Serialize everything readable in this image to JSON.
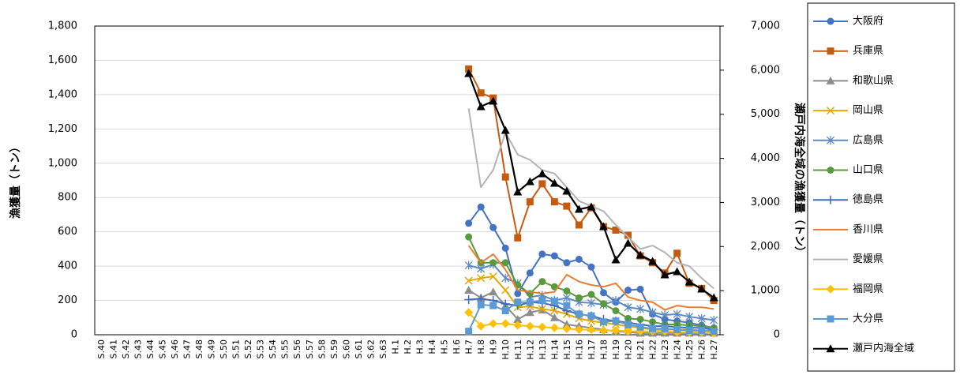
{
  "chart_data": {
    "type": "line",
    "y_title": "漁獲量（トン）",
    "y2_title": "瀬戸内海全域の漁獲量（トン）",
    "categories": [
      "S.40",
      "S.41",
      "S.42",
      "S.43",
      "S.44",
      "S.45",
      "S.46",
      "S.47",
      "S.48",
      "S.49",
      "S.50",
      "S.51",
      "S.52",
      "S.53",
      "S.54",
      "S.55",
      "S.56",
      "S.57",
      "S.58",
      "S.59",
      "S.60",
      "S.61",
      "S.62",
      "S.63",
      "H.1",
      "H.2",
      "H.3",
      "H.4",
      "H.5",
      "H.6",
      "H.7",
      "H.8",
      "H.9",
      "H.10",
      "H.11",
      "H.12",
      "H.13",
      "H.14",
      "H.15",
      "H.16",
      "H.17",
      "H.18",
      "H.19",
      "H.20",
      "H.21",
      "H.22",
      "H.23",
      "H.24",
      "H.25",
      "H.26",
      "H.27"
    ],
    "ylim": [
      0,
      1800
    ],
    "yticks": [
      0,
      200,
      400,
      600,
      800,
      {
        "value": 1000,
        "label": "1,000"
      },
      {
        "value": 1200,
        "label": "1,200"
      },
      {
        "value": 1400,
        "label": "1,400"
      },
      {
        "value": 1600,
        "label": "1,600"
      },
      {
        "value": 1800,
        "label": "1,800"
      }
    ],
    "y2lim": [
      0,
      7000
    ],
    "y2ticks": [
      0,
      {
        "value": 1000,
        "label": "1,000"
      },
      {
        "value": 2000,
        "label": "2,000"
      },
      {
        "value": 3000,
        "label": "3,000"
      },
      {
        "value": 4000,
        "label": "4,000"
      },
      {
        "value": 5000,
        "label": "5,000"
      },
      {
        "value": 6000,
        "label": "6,000"
      },
      {
        "value": 7000,
        "label": "7,000"
      }
    ],
    "grid": true,
    "legend": "right",
    "series": [
      {
        "name": "大阪府",
        "color": "#4472c4",
        "marker": "circle",
        "values": [
          null,
          null,
          null,
          null,
          null,
          null,
          null,
          null,
          null,
          null,
          null,
          null,
          null,
          null,
          null,
          null,
          null,
          null,
          null,
          null,
          null,
          null,
          null,
          null,
          null,
          null,
          null,
          null,
          null,
          null,
          650,
          745,
          625,
          505,
          240,
          360,
          470,
          460,
          420,
          440,
          395,
          245,
          190,
          260,
          265,
          120,
          90,
          80,
          70,
          55,
          40
        ]
      },
      {
        "name": "兵庫県",
        "color": "#c55a11",
        "marker": "square",
        "values": [
          null,
          null,
          null,
          null,
          null,
          null,
          null,
          null,
          null,
          null,
          null,
          null,
          null,
          null,
          null,
          null,
          null,
          null,
          null,
          null,
          null,
          null,
          null,
          null,
          null,
          null,
          null,
          null,
          null,
          null,
          1550,
          1410,
          1380,
          920,
          565,
          775,
          880,
          775,
          750,
          640,
          740,
          630,
          610,
          580,
          460,
          420,
          360,
          475,
          300,
          270,
          200
        ]
      },
      {
        "name": "和歌山県",
        "color": "#8c8c8c",
        "marker": "triangle",
        "values": [
          null,
          null,
          null,
          null,
          null,
          null,
          null,
          null,
          null,
          null,
          null,
          null,
          null,
          null,
          null,
          null,
          null,
          null,
          null,
          null,
          null,
          null,
          null,
          null,
          null,
          null,
          null,
          null,
          null,
          null,
          260,
          215,
          250,
          170,
          90,
          130,
          145,
          100,
          60,
          50,
          40,
          30,
          20,
          15,
          10,
          10,
          10,
          10,
          10,
          10,
          10
        ]
      },
      {
        "name": "岡山県",
        "color": "#e6a800",
        "marker": "x",
        "values": [
          null,
          null,
          null,
          null,
          null,
          null,
          null,
          null,
          null,
          null,
          null,
          null,
          null,
          null,
          null,
          null,
          null,
          null,
          null,
          null,
          null,
          null,
          null,
          null,
          null,
          null,
          null,
          null,
          null,
          null,
          315,
          330,
          340,
          260,
          160,
          165,
          150,
          140,
          120,
          95,
          80,
          70,
          60,
          50,
          40,
          30,
          30,
          30,
          30,
          25,
          25
        ]
      },
      {
        "name": "広島県",
        "color": "#5b8ac6",
        "marker": "asterisk",
        "values": [
          null,
          null,
          null,
          null,
          null,
          null,
          null,
          null,
          null,
          null,
          null,
          null,
          null,
          null,
          null,
          null,
          null,
          null,
          null,
          null,
          null,
          null,
          null,
          null,
          null,
          null,
          null,
          null,
          null,
          null,
          405,
          385,
          410,
          330,
          300,
          220,
          230,
          200,
          215,
          190,
          185,
          175,
          200,
          160,
          150,
          130,
          115,
          120,
          105,
          95,
          85
        ]
      },
      {
        "name": "山口県",
        "color": "#5a9a3c",
        "marker": "circle",
        "values": [
          null,
          null,
          null,
          null,
          null,
          null,
          null,
          null,
          null,
          null,
          null,
          null,
          null,
          null,
          null,
          null,
          null,
          null,
          null,
          null,
          null,
          null,
          null,
          null,
          null,
          null,
          null,
          null,
          null,
          null,
          570,
          420,
          420,
          420,
          290,
          240,
          310,
          280,
          255,
          215,
          235,
          180,
          140,
          95,
          90,
          75,
          60,
          60,
          55,
          50,
          40
        ]
      },
      {
        "name": "徳島県",
        "color": "#3c6bc0",
        "marker": "plus",
        "values": [
          null,
          null,
          null,
          null,
          null,
          null,
          null,
          null,
          null,
          null,
          null,
          null,
          null,
          null,
          null,
          null,
          null,
          null,
          null,
          null,
          null,
          null,
          null,
          null,
          null,
          null,
          null,
          null,
          null,
          null,
          205,
          210,
          200,
          180,
          170,
          190,
          185,
          170,
          140,
          120,
          110,
          90,
          80,
          70,
          60,
          50,
          50,
          45,
          40,
          40,
          30
        ]
      },
      {
        "name": "香川県",
        "color": "#ed7d31",
        "marker": "none",
        "values": [
          null,
          null,
          null,
          null,
          null,
          null,
          null,
          null,
          null,
          null,
          null,
          null,
          null,
          null,
          null,
          null,
          null,
          null,
          null,
          null,
          null,
          null,
          null,
          null,
          null,
          null,
          null,
          null,
          null,
          null,
          520,
          420,
          470,
          380,
          260,
          250,
          240,
          250,
          350,
          310,
          290,
          280,
          300,
          220,
          200,
          190,
          145,
          170,
          160,
          160,
          150
        ]
      },
      {
        "name": "愛媛県",
        "color": "#b4b4b4",
        "marker": "none",
        "values": [
          null,
          null,
          null,
          null,
          null,
          null,
          null,
          null,
          null,
          null,
          null,
          null,
          null,
          null,
          null,
          null,
          null,
          null,
          null,
          null,
          null,
          null,
          null,
          null,
          null,
          null,
          null,
          null,
          null,
          null,
          1320,
          860,
          960,
          1180,
          1050,
          1020,
          960,
          940,
          860,
          780,
          750,
          720,
          640,
          570,
          500,
          520,
          480,
          420,
          400,
          330,
          270
        ]
      },
      {
        "name": "福岡県",
        "color": "#ffc000",
        "marker": "diamond",
        "values": [
          null,
          null,
          null,
          null,
          null,
          null,
          null,
          null,
          null,
          null,
          null,
          null,
          null,
          null,
          null,
          null,
          null,
          null,
          null,
          null,
          null,
          null,
          null,
          null,
          null,
          null,
          null,
          null,
          null,
          null,
          130,
          50,
          65,
          65,
          55,
          50,
          45,
          40,
          35,
          30,
          30,
          25,
          25,
          20,
          20,
          20,
          20,
          15,
          15,
          15,
          10
        ]
      },
      {
        "name": "大分県",
        "color": "#5b9bd5",
        "marker": "square",
        "values": [
          null,
          null,
          null,
          null,
          null,
          null,
          null,
          null,
          null,
          null,
          null,
          null,
          null,
          null,
          null,
          null,
          null,
          null,
          null,
          null,
          null,
          null,
          null,
          null,
          null,
          null,
          null,
          null,
          null,
          null,
          20,
          175,
          170,
          140,
          190,
          190,
          200,
          195,
          170,
          120,
          110,
          75,
          80,
          60,
          45,
          35,
          35,
          30,
          25,
          25,
          20
        ]
      },
      {
        "name": "瀬戸内海全域",
        "color": "#000000",
        "marker": "triangle",
        "axis": "y2",
        "values": [
          null,
          null,
          null,
          null,
          null,
          null,
          null,
          null,
          null,
          null,
          null,
          null,
          null,
          null,
          null,
          null,
          null,
          null,
          null,
          null,
          null,
          null,
          null,
          null,
          null,
          null,
          null,
          null,
          null,
          null,
          5926,
          5174,
          5300,
          4637,
          3240,
          3473,
          3652,
          3437,
          3258,
          2846,
          2900,
          2453,
          1700,
          2077,
          1808,
          1665,
          1360,
          1432,
          1200,
          1038,
          841
        ]
      }
    ]
  }
}
